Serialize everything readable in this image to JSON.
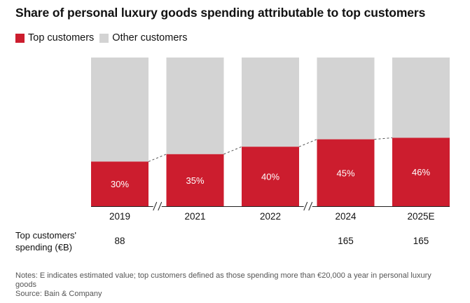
{
  "chart_data": {
    "type": "bar",
    "stacked": true,
    "title": "Share of personal luxury goods spending attributable to top customers",
    "categories": [
      "2019",
      "2021",
      "2022",
      "2024",
      "2025E"
    ],
    "series": [
      {
        "name": "Top customers",
        "values": [
          30,
          35,
          40,
          45,
          46
        ],
        "labels": [
          "30%",
          "35%",
          "40%",
          "45%",
          "46%"
        ]
      },
      {
        "name": "Other customers",
        "values": [
          70,
          65,
          60,
          55,
          54
        ]
      }
    ],
    "ylim": [
      0,
      100
    ],
    "axis_breaks_after": [
      "2019",
      "2022"
    ],
    "connector_lines": true,
    "spending_row": {
      "label": "Top customers' spending (€B)",
      "values": [
        "88",
        "",
        "",
        "165",
        "165"
      ]
    },
    "legend_position": "top-left"
  },
  "colors": {
    "top": "#cc1d2e",
    "other": "#d3d3d3",
    "connector": "#555555"
  },
  "notes": {
    "line1": "Notes: E indicates estimated value; top customers defined as those spending more than €20,000 a year in personal luxury goods",
    "line2": "Source: Bain & Company"
  }
}
